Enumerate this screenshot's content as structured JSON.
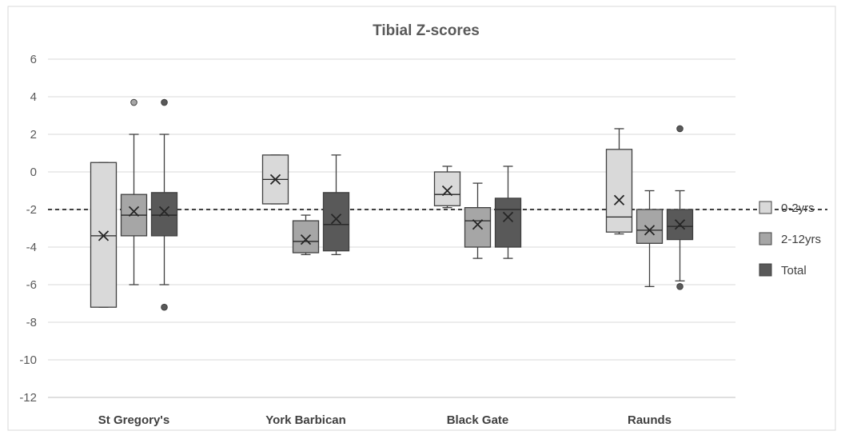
{
  "chart_data": {
    "type": "box",
    "title": "Tibial Z-scores",
    "xlabel": "",
    "ylabel": "",
    "ylim": [
      -12,
      6
    ],
    "yticks": [
      6,
      4,
      2,
      0,
      -2,
      -4,
      -6,
      -8,
      -10,
      -12
    ],
    "grid": true,
    "legend_position": "right",
    "reference_line": {
      "y": -2,
      "style": "dashed"
    },
    "categories": [
      "St Gregory's",
      "York Barbican",
      "Black Gate",
      "Raunds"
    ],
    "series": [
      {
        "name": "0-2yrs",
        "color": "#d9d9d9",
        "boxes": [
          {
            "whisker_low": -7.2,
            "q1": -7.2,
            "median": -3.4,
            "q3": 0.5,
            "whisker_high": 0.5,
            "mean": -3.4,
            "outliers": []
          },
          {
            "whisker_low": -1.7,
            "q1": -1.7,
            "median": -0.4,
            "q3": 0.9,
            "whisker_high": 0.9,
            "mean": -0.4,
            "outliers": []
          },
          {
            "whisker_low": -1.9,
            "q1": -1.8,
            "median": -1.2,
            "q3": 0.0,
            "whisker_high": 0.3,
            "mean": -1.0,
            "outliers": []
          },
          {
            "whisker_low": -3.3,
            "q1": -3.2,
            "median": -2.4,
            "q3": 1.2,
            "whisker_high": 2.3,
            "mean": -1.5,
            "outliers": []
          }
        ]
      },
      {
        "name": "2-12yrs",
        "color": "#a6a6a6",
        "boxes": [
          {
            "whisker_low": -6.0,
            "q1": -3.4,
            "median": -2.3,
            "q3": -1.2,
            "whisker_high": 2.0,
            "mean": -2.1,
            "outliers": [
              3.7
            ]
          },
          {
            "whisker_low": -4.4,
            "q1": -4.3,
            "median": -3.7,
            "q3": -2.6,
            "whisker_high": -2.3,
            "mean": -3.6,
            "outliers": []
          },
          {
            "whisker_low": -4.6,
            "q1": -4.0,
            "median": -2.6,
            "q3": -1.9,
            "whisker_high": -0.6,
            "mean": -2.8,
            "outliers": []
          },
          {
            "whisker_low": -6.1,
            "q1": -3.8,
            "median": -3.1,
            "q3": -2.0,
            "whisker_high": -1.0,
            "mean": -3.1,
            "outliers": []
          }
        ]
      },
      {
        "name": "Total",
        "color": "#595959",
        "boxes": [
          {
            "whisker_low": -6.0,
            "q1": -3.4,
            "median": -2.3,
            "q3": -1.1,
            "whisker_high": 2.0,
            "mean": -2.1,
            "outliers": [
              3.7,
              -7.2
            ]
          },
          {
            "whisker_low": -4.4,
            "q1": -4.2,
            "median": -2.8,
            "q3": -1.1,
            "whisker_high": 0.9,
            "mean": -2.5,
            "outliers": []
          },
          {
            "whisker_low": -4.6,
            "q1": -4.0,
            "median": -2.0,
            "q3": -1.4,
            "whisker_high": 0.3,
            "mean": -2.4,
            "outliers": []
          },
          {
            "whisker_low": -5.8,
            "q1": -3.6,
            "median": -2.9,
            "q3": -2.0,
            "whisker_high": -1.0,
            "mean": -2.8,
            "outliers": [
              2.3,
              -6.1
            ]
          }
        ]
      }
    ]
  }
}
